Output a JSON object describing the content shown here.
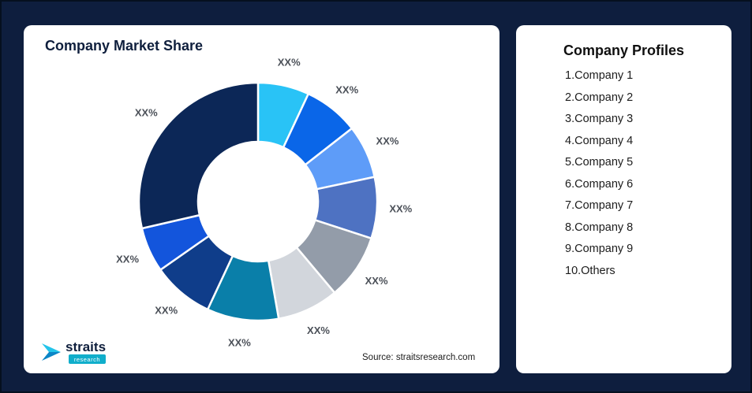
{
  "page": {
    "background": "#0E1E3E"
  },
  "market_share_card": {
    "title": "Company Market Share",
    "source": "Source: straitsresearch.com",
    "logo": {
      "brand": "straits",
      "tagline": "research"
    }
  },
  "profiles_card": {
    "title": "Company Profiles",
    "items": [
      "1.Company 1",
      "2.Company 2",
      "3.Company 3",
      "4.Company 4",
      "5.Company 5",
      "6.Company 6",
      "7.Company 7",
      "8.Company 8",
      "9.Company 9",
      "10.Others"
    ]
  },
  "chart_data": {
    "type": "pie",
    "subtype": "donut",
    "title": "Company Market Share",
    "legend": "none",
    "value_labels_masked": "XX%",
    "segments": [
      {
        "name": "Company 1",
        "label": "XX%",
        "angle_deg": 25,
        "approx_pct": 6.9,
        "color": "#29C3F6"
      },
      {
        "name": "Company 2",
        "label": "XX%",
        "angle_deg": 27,
        "approx_pct": 7.5,
        "color": "#0A66E8"
      },
      {
        "name": "Company 3",
        "label": "XX%",
        "angle_deg": 26,
        "approx_pct": 7.2,
        "color": "#5E9CF8"
      },
      {
        "name": "Company 4",
        "label": "XX%",
        "angle_deg": 30,
        "approx_pct": 8.3,
        "color": "#4E72C2"
      },
      {
        "name": "Company 5",
        "label": "XX%",
        "angle_deg": 32,
        "approx_pct": 8.9,
        "color": "#939CA9"
      },
      {
        "name": "Company 6",
        "label": "XX%",
        "angle_deg": 30,
        "approx_pct": 8.3,
        "color": "#D2D6DC"
      },
      {
        "name": "Company 7",
        "label": "XX%",
        "angle_deg": 35,
        "approx_pct": 9.7,
        "color": "#0A7FA9"
      },
      {
        "name": "Company 8",
        "label": "XX%",
        "angle_deg": 30,
        "approx_pct": 8.3,
        "color": "#0F3D8A"
      },
      {
        "name": "Company 9",
        "label": "XX%",
        "angle_deg": 22,
        "approx_pct": 6.1,
        "color": "#1355DC"
      },
      {
        "name": "Others",
        "label": "XX%",
        "angle_deg": 103,
        "approx_pct": 28.6,
        "color": "#0C2757"
      }
    ]
  }
}
